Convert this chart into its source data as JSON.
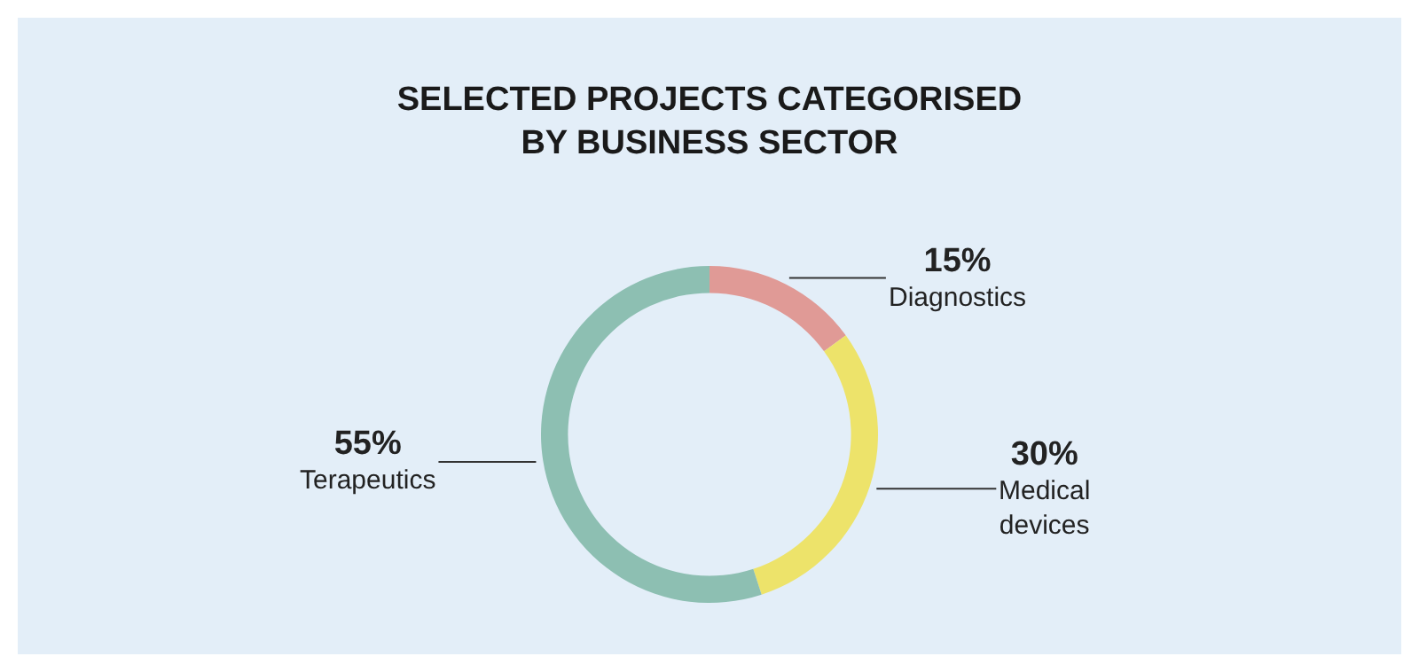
{
  "chart_data": {
    "type": "donut",
    "title": "SELECTED PROJECTS CATEGORISED\nBY BUSINESS SECTOR",
    "categories": [
      "Diagnostics",
      "Medical devices",
      "Terapeutics"
    ],
    "values": [
      15,
      30,
      55
    ],
    "colors": [
      "#e09a96",
      "#ede36a",
      "#8dbfb2"
    ],
    "value_labels": [
      "15%",
      "30%",
      "55%"
    ],
    "legend": false
  }
}
